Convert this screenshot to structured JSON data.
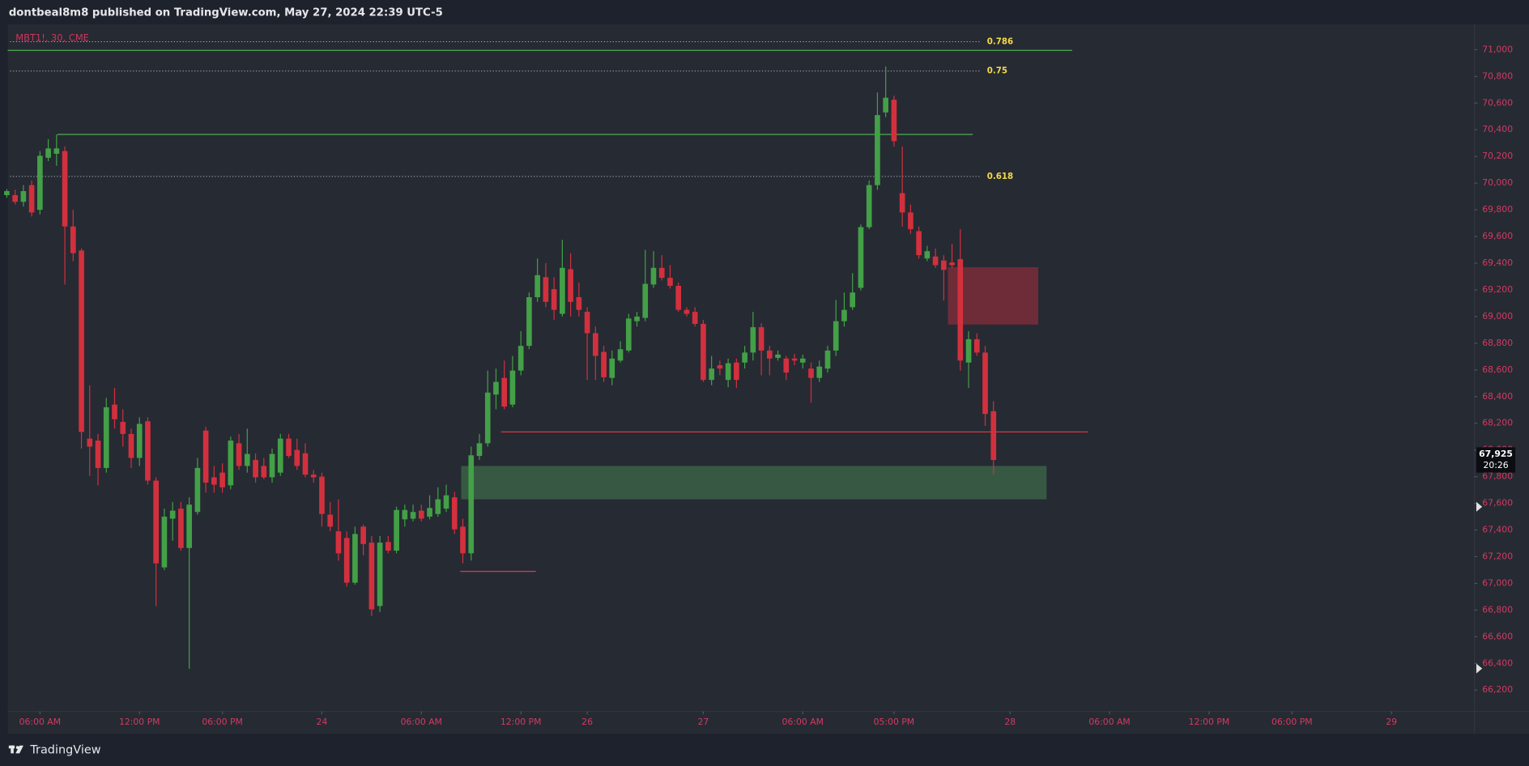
{
  "header": "dontbeal8m8 published on TradingView.com, May 27, 2024 22:39 UTC-5",
  "footer": {
    "brand": "TradingView"
  },
  "chart_data": {
    "type": "candlestick",
    "symbol": "MBT1!, 30, CME",
    "up_color": "#43a047",
    "down_color": "#d3303e",
    "xlim": [
      -3.88,
      173
    ],
    "ylim": [
      66040,
      71190
    ],
    "xticks": [
      {
        "value": 0,
        "label": "06:00 AM"
      },
      {
        "value": 12,
        "label": "12:00 PM"
      },
      {
        "value": 22,
        "label": "06:00 PM"
      },
      {
        "value": 34,
        "label": "24"
      },
      {
        "value": 46,
        "label": "06:00 AM"
      },
      {
        "value": 58,
        "label": "12:00 PM"
      },
      {
        "value": 66,
        "label": "26"
      },
      {
        "value": 80,
        "label": "27"
      },
      {
        "value": 92,
        "label": "06:00 AM"
      },
      {
        "value": 103,
        "label": "05:00 PM"
      },
      {
        "value": 117,
        "label": "28"
      },
      {
        "value": 129,
        "label": "06:00 AM"
      },
      {
        "value": 141,
        "label": "12:00 PM"
      },
      {
        "value": 151,
        "label": "06:00 PM"
      },
      {
        "value": 163,
        "label": "29"
      }
    ],
    "yticks": [
      {
        "value": 66200,
        "label": "66,200"
      },
      {
        "value": 66400,
        "label": "66,400"
      },
      {
        "value": 66600,
        "label": "66,600"
      },
      {
        "value": 66800,
        "label": "66,800"
      },
      {
        "value": 67000,
        "label": "67,000"
      },
      {
        "value": 67200,
        "label": "67,200"
      },
      {
        "value": 67400,
        "label": "67,400"
      },
      {
        "value": 67600,
        "label": "67,600"
      },
      {
        "value": 67800,
        "label": "67,800"
      },
      {
        "value": 68000,
        "label": "68,000"
      },
      {
        "value": 68200,
        "label": "68,200"
      },
      {
        "value": 68400,
        "label": "68,400"
      },
      {
        "value": 68600,
        "label": "68,600"
      },
      {
        "value": 68800,
        "label": "68,800"
      },
      {
        "value": 69000,
        "label": "69,000"
      },
      {
        "value": 69200,
        "label": "69,200"
      },
      {
        "value": 69400,
        "label": "69,400"
      },
      {
        "value": 69600,
        "label": "69,600"
      },
      {
        "value": 69800,
        "label": "69,800"
      },
      {
        "value": 70000,
        "label": "70,000"
      },
      {
        "value": 70200,
        "label": "70,200"
      },
      {
        "value": 70400,
        "label": "70,400"
      },
      {
        "value": 70600,
        "label": "70,600"
      },
      {
        "value": 70800,
        "label": "70,800"
      },
      {
        "value": 71000,
        "label": "71,000"
      }
    ],
    "x": [
      -4,
      -3,
      -2,
      -1,
      0,
      1,
      2,
      3,
      4,
      5,
      6,
      7,
      8,
      9,
      10,
      11,
      12,
      13,
      14,
      15,
      16,
      17,
      18,
      19,
      20,
      21,
      22,
      23,
      24,
      25,
      26,
      27,
      28,
      29,
      30,
      31,
      32,
      33,
      34,
      35,
      36,
      37,
      38,
      39,
      40,
      41,
      42,
      43,
      44,
      45,
      46,
      47,
      48,
      49,
      50,
      51,
      52,
      53,
      54,
      55,
      56,
      57,
      58,
      59,
      60,
      61,
      62,
      63,
      64,
      65,
      66,
      67,
      68,
      69,
      70,
      71,
      72,
      73,
      74,
      75,
      76,
      77,
      78,
      79,
      80,
      81,
      82,
      83,
      84,
      85,
      86,
      87,
      88,
      89,
      90,
      91,
      92,
      93,
      94,
      95,
      96,
      97,
      98,
      99,
      100,
      101,
      102,
      103,
      104,
      105,
      106,
      107,
      108,
      109,
      110,
      111,
      112,
      113,
      114,
      115
    ],
    "open": [
      69910,
      69910,
      69860,
      69985,
      69800,
      70190,
      70220,
      70240,
      69675,
      69495,
      68085,
      68070,
      67865,
      68340,
      68210,
      68120,
      67940,
      68215,
      67770,
      67120,
      67485,
      67560,
      67265,
      67535,
      68145,
      67795,
      67830,
      67735,
      68050,
      67880,
      67925,
      67880,
      67795,
      67830,
      68085,
      68000,
      67975,
      67815,
      67800,
      67515,
      67390,
      67340,
      67005,
      67425,
      67305,
      66830,
      67310,
      67245,
      67480,
      67485,
      67545,
      67500,
      67520,
      67560,
      67645,
      67425,
      67225,
      67955,
      68050,
      68415,
      68540,
      68340,
      68595,
      68780,
      69145,
      69295,
      69205,
      69020,
      69355,
      69145,
      69035,
      68875,
      68735,
      68540,
      68670,
      68745,
      68965,
      68990,
      69240,
      69365,
      69290,
      69230,
      69050,
      69035,
      68945,
      68525,
      68635,
      68525,
      68655,
      68655,
      68730,
      68920,
      68745,
      68690,
      68685,
      68685,
      68655,
      68610,
      68540,
      68610,
      68745,
      68965,
      69070,
      69215,
      69670,
      69985,
      70530,
      70625,
      69925,
      69780,
      69640,
      69435,
      69450,
      69420,
      69405,
      69430,
      68655,
      68830,
      68730,
      68290
    ],
    "high": [
      69955,
      69950,
      69985,
      70020,
      70240,
      70330,
      70365,
      70275,
      69800,
      69510,
      68485,
      68120,
      68390,
      68465,
      68305,
      68160,
      68245,
      68245,
      67795,
      67560,
      67610,
      67610,
      67645,
      67940,
      68175,
      67880,
      67900,
      68100,
      68120,
      68160,
      67975,
      67940,
      68010,
      68120,
      68120,
      68085,
      68050,
      67850,
      67830,
      67610,
      67630,
      67390,
      67425,
      67440,
      67355,
      67355,
      67355,
      67575,
      67590,
      67590,
      67590,
      67660,
      67720,
      67740,
      67685,
      67485,
      68025,
      68120,
      68595,
      68610,
      68670,
      68705,
      68890,
      69180,
      69435,
      69400,
      69295,
      69575,
      69475,
      69255,
      69070,
      68925,
      68780,
      68745,
      68815,
      69020,
      69035,
      69500,
      69490,
      69460,
      69385,
      69255,
      69070,
      69070,
      68975,
      68705,
      68670,
      68685,
      68685,
      68780,
      69035,
      68950,
      68780,
      68745,
      68705,
      68720,
      68715,
      68655,
      68670,
      68780,
      69125,
      69180,
      69325,
      69690,
      70020,
      70680,
      70875,
      70655,
      70275,
      69840,
      69675,
      69530,
      69510,
      69460,
      69545,
      69655,
      68890,
      68875,
      68780,
      68365
    ],
    "low": [
      69890,
      69840,
      69825,
      69750,
      69765,
      70165,
      70130,
      69240,
      69415,
      68010,
      67805,
      67735,
      67830,
      68160,
      68025,
      67865,
      67880,
      67740,
      66830,
      67100,
      67320,
      67245,
      66360,
      67515,
      67680,
      67680,
      67680,
      67705,
      67850,
      67830,
      67755,
      67780,
      67755,
      67805,
      67940,
      67850,
      67795,
      67755,
      67425,
      67390,
      67170,
      66975,
      66990,
      67210,
      66755,
      66785,
      67225,
      67225,
      67425,
      67465,
      67465,
      67480,
      67500,
      67535,
      67370,
      67150,
      67170,
      67925,
      68025,
      68305,
      68305,
      68320,
      68560,
      68755,
      69110,
      69070,
      68975,
      69000,
      69000,
      69000,
      68525,
      68525,
      68510,
      68485,
      68655,
      68730,
      68925,
      68965,
      69215,
      69270,
      69210,
      69035,
      69000,
      68925,
      68510,
      68485,
      68560,
      68470,
      68465,
      68610,
      68670,
      68560,
      68560,
      68670,
      68525,
      68635,
      68610,
      68355,
      68510,
      68580,
      68705,
      68925,
      69050,
      69195,
      69655,
      69950,
      70495,
      70275,
      69675,
      69620,
      69435,
      69415,
      69365,
      69120,
      69365,
      68595,
      68465,
      68705,
      68180,
      67815
    ],
    "close": [
      69940,
      69860,
      69940,
      69780,
      70205,
      70260,
      70260,
      69675,
      69475,
      68135,
      68025,
      67865,
      68320,
      68230,
      68120,
      67940,
      68195,
      67770,
      67150,
      67500,
      67545,
      67265,
      67590,
      67865,
      67755,
      67740,
      67720,
      68070,
      67880,
      67970,
      67795,
      67795,
      67970,
      68085,
      67955,
      67880,
      67815,
      67795,
      67520,
      67425,
      67225,
      67005,
      67370,
      67295,
      66805,
      67305,
      67245,
      67550,
      67550,
      67535,
      67485,
      67565,
      67630,
      67660,
      67405,
      67225,
      67960,
      68050,
      68430,
      68510,
      68325,
      68595,
      68780,
      69145,
      69310,
      69110,
      69050,
      69365,
      69110,
      69050,
      68875,
      68705,
      68545,
      68685,
      68755,
      68985,
      69000,
      69245,
      69365,
      69290,
      69230,
      69050,
      69020,
      68945,
      68525,
      68610,
      68610,
      68650,
      68525,
      68730,
      68920,
      68745,
      68685,
      68715,
      68580,
      68670,
      68685,
      68540,
      68625,
      68745,
      68965,
      69050,
      69180,
      69670,
      69985,
      70510,
      70640,
      70315,
      69780,
      69655,
      69460,
      69490,
      69385,
      69350,
      69385,
      68670,
      68830,
      68730,
      68270,
      67925
    ],
    "fib_color": "#b2b5be",
    "fib_label_color": "#f5d94a",
    "fib_range": [
      -3.6,
      113.4
    ],
    "fib_levels": [
      {
        "label": "0.786",
        "value": 71060
      },
      {
        "label": "0.75",
        "value": 70840
      },
      {
        "label": "0.618",
        "value": 70050
      }
    ],
    "lines": [
      {
        "value": 70995,
        "x0": -3.9,
        "x1": 124.5,
        "color": "#4caf50"
      },
      {
        "value": 70365,
        "x0": 2.1,
        "x1": 112.5,
        "color": "#4caf50"
      },
      {
        "value": 68135,
        "x0": 55.6,
        "x1": 126.4,
        "color": "#e53945"
      },
      {
        "value": 67090,
        "x0": 50.7,
        "x1": 59.8,
        "color": "#e53945"
      }
    ],
    "zones": [
      {
        "high": 69370,
        "low": 68940,
        "x0": 109.5,
        "x1": 120.4,
        "color": "#7a2d3a"
      },
      {
        "high": 67880,
        "low": 67630,
        "x0": 50.8,
        "x1": 121.4,
        "color": "#3b6146"
      }
    ],
    "last_price": {
      "value": 67925,
      "label": "67,925"
    },
    "countdown": "20:26"
  }
}
